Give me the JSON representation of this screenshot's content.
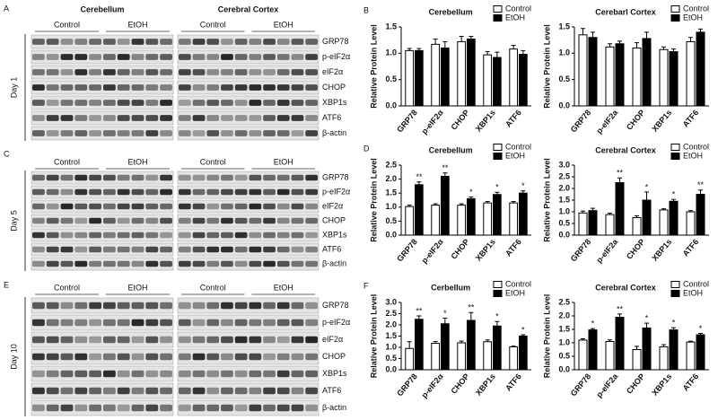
{
  "blots": [
    {
      "letter": "A",
      "regions": [
        "Cerebellum",
        "Cerebral Cortex"
      ],
      "groups": [
        "Control",
        "EtOH",
        "Control",
        "EtOH"
      ],
      "day": "Day 1",
      "proteins": [
        "GRP78",
        "p-eIF2α",
        "eIF2α",
        "CHOP",
        "XBP1s",
        "ATF6",
        "β-actin"
      ]
    },
    {
      "letter": "C",
      "groups": [
        "Control",
        "EtOH",
        "Control",
        "EtOH"
      ],
      "day": "Day 5",
      "proteins": [
        "GRP78",
        "p-eIF2α",
        "eIF2α",
        "CHOP",
        "XBP1s",
        "ATF6",
        "β-actin"
      ]
    },
    {
      "letter": "E",
      "groups": [
        "Control",
        "EtOH",
        "Control",
        "EtOH"
      ],
      "day": "Day 10",
      "proteins": [
        "GRP78",
        "p-eIF2α",
        "eIF2α",
        "CHOP",
        "XBP1s",
        "ATF6",
        "β-actin"
      ]
    }
  ],
  "chart_data": [
    {
      "type": "bar",
      "panel_label": "B",
      "title": "Cerebellum",
      "y_label": "Relative Protein Level",
      "categories": [
        "GRP78",
        "p-eIF2α",
        "CHOP",
        "XBP1s",
        "ATF6"
      ],
      "series": [
        {
          "name": "Control",
          "color": "#ffffff",
          "values": [
            1.05,
            1.17,
            1.22,
            0.97,
            1.08
          ],
          "errors": [
            0.04,
            0.1,
            0.1,
            0.06,
            0.07
          ],
          "significance": [
            null,
            null,
            null,
            null,
            null
          ]
        },
        {
          "name": "EtOH",
          "color": "#000000",
          "values": [
            1.05,
            1.1,
            1.27,
            0.92,
            0.98
          ],
          "errors": [
            0.04,
            0.12,
            0.05,
            0.1,
            0.07
          ],
          "significance": [
            null,
            null,
            null,
            null,
            null
          ]
        }
      ],
      "ylim": [
        0,
        1.5
      ],
      "yticks": [
        {
          "value": 0,
          "label": "0.0"
        },
        {
          "value": 0.5,
          "label": "0.5"
        },
        {
          "value": 1,
          "label": "1.0"
        },
        {
          "value": 1.5,
          "label": "1.5"
        }
      ]
    },
    {
      "type": "bar",
      "title": "Cerebarl Cortex",
      "y_label": "Relative Protein Level",
      "categories": [
        "GRP78",
        "p-eIF2a",
        "CHOP",
        "XBP1s",
        "ATF6"
      ],
      "series": [
        {
          "name": "Control",
          "color": "#ffffff",
          "values": [
            1.35,
            1.12,
            1.1,
            1.07,
            1.22
          ],
          "errors": [
            0.12,
            0.06,
            0.1,
            0.05,
            0.08
          ],
          "significance": [
            null,
            null,
            null,
            null,
            null
          ]
        },
        {
          "name": "EtOH",
          "color": "#000000",
          "values": [
            1.3,
            1.18,
            1.28,
            1.03,
            1.4
          ],
          "errors": [
            0.1,
            0.05,
            0.12,
            0.05,
            0.06
          ],
          "significance": [
            null,
            null,
            null,
            null,
            null
          ]
        }
      ],
      "ylim": [
        0,
        1.5
      ],
      "yticks": [
        {
          "value": 0,
          "label": "0.0"
        },
        {
          "value": 0.5,
          "label": "0.5"
        },
        {
          "value": 1,
          "label": "1.0"
        },
        {
          "value": 1.5,
          "label": "1.5"
        }
      ]
    },
    {
      "type": "bar",
      "panel_label": "D",
      "title": "Cerebellum",
      "y_label": "Relative Protein Level",
      "categories": [
        "GRP78",
        "p-eIF2α",
        "CHOP",
        "XBP1s",
        "ATF6"
      ],
      "series": [
        {
          "name": "Control",
          "color": "#ffffff",
          "values": [
            1.02,
            1.07,
            1.07,
            1.15,
            1.15
          ],
          "errors": [
            0.05,
            0.05,
            0.05,
            0.05,
            0.05
          ],
          "significance": [
            null,
            null,
            null,
            null,
            null
          ]
        },
        {
          "name": "EtOH",
          "color": "#000000",
          "values": [
            1.8,
            2.1,
            1.3,
            1.45,
            1.5
          ],
          "errors": [
            0.1,
            0.12,
            0.06,
            0.08,
            0.08
          ],
          "significance": [
            "**",
            "**",
            "*",
            "*",
            "*"
          ]
        }
      ],
      "ylim": [
        0,
        2.5
      ],
      "yticks": [
        {
          "value": 0,
          "label": "0.0"
        },
        {
          "value": 0.5,
          "label": "0.5"
        },
        {
          "value": 1,
          "label": "1.0"
        },
        {
          "value": 1.5,
          "label": "1.5"
        },
        {
          "value": 2,
          "label": "2.0"
        },
        {
          "value": 2.5,
          "label": "2.5"
        }
      ]
    },
    {
      "type": "bar",
      "title": "Cerebral Cortex",
      "y_label": "Relative Protein Level",
      "categories": [
        "GRP78",
        "p-eIF2a",
        "CHOP",
        "XBP1s",
        "ATF6"
      ],
      "series": [
        {
          "name": "Control",
          "color": "#ffffff",
          "values": [
            0.95,
            0.88,
            0.75,
            1.08,
            1.0
          ],
          "errors": [
            0.08,
            0.06,
            0.08,
            0.05,
            0.05
          ],
          "significance": [
            null,
            null,
            null,
            null,
            null
          ]
        },
        {
          "name": "EtOH",
          "color": "#000000",
          "values": [
            1.05,
            2.25,
            1.5,
            1.45,
            1.75
          ],
          "errors": [
            0.1,
            0.2,
            0.35,
            0.08,
            0.18
          ],
          "significance": [
            null,
            "**",
            "*",
            "*",
            "**"
          ]
        }
      ],
      "ylim": [
        0,
        3
      ],
      "yticks": [
        {
          "value": 0,
          "label": "0.0"
        },
        {
          "value": 0.5,
          "label": "0.5"
        },
        {
          "value": 1,
          "label": "1.0"
        },
        {
          "value": 1.5,
          "label": "1.5"
        },
        {
          "value": 2,
          "label": "2.0"
        },
        {
          "value": 2.5,
          "label": "2.5"
        },
        {
          "value": 3,
          "label": "3.0"
        }
      ]
    },
    {
      "type": "bar",
      "panel_label": "F",
      "title": "Cerbellum",
      "y_label": "Relative Protein Level",
      "categories": [
        "GRP78",
        "p-eIF2α",
        "CHOP",
        "XBP1s",
        "ATF6"
      ],
      "series": [
        {
          "name": "Control",
          "color": "#ffffff",
          "values": [
            0.95,
            1.18,
            1.2,
            1.25,
            1.02
          ],
          "errors": [
            0.3,
            0.08,
            0.08,
            0.08,
            0.03
          ],
          "significance": [
            null,
            null,
            null,
            null,
            null
          ]
        },
        {
          "name": "EtOH",
          "color": "#000000",
          "values": [
            2.25,
            2.05,
            2.2,
            1.95,
            1.5
          ],
          "errors": [
            0.15,
            0.25,
            0.35,
            0.2,
            0.06
          ],
          "significance": [
            "**",
            "*",
            "**",
            "*",
            "*"
          ]
        }
      ],
      "ylim": [
        0,
        3
      ],
      "yticks": [
        {
          "value": 0,
          "label": "0.0"
        },
        {
          "value": 0.5,
          "label": "0.5"
        },
        {
          "value": 1,
          "label": "1.0"
        },
        {
          "value": 1.5,
          "label": "1.5"
        },
        {
          "value": 2,
          "label": "2.0"
        },
        {
          "value": 2.5,
          "label": "2.5"
        },
        {
          "value": 3,
          "label": "3.0"
        }
      ]
    },
    {
      "type": "bar",
      "title": "Cerebral Cortex",
      "y_label": "Relative Protein Level",
      "categories": [
        "GRP78",
        "p-eIF2a",
        "CHOP",
        "XBP1s",
        "ATF6"
      ],
      "series": [
        {
          "name": "Control",
          "color": "#ffffff",
          "values": [
            1.1,
            1.05,
            0.75,
            0.85,
            1.03
          ],
          "errors": [
            0.05,
            0.06,
            0.12,
            0.08,
            0.03
          ],
          "significance": [
            null,
            null,
            null,
            null,
            null
          ]
        },
        {
          "name": "EtOH",
          "color": "#000000",
          "values": [
            1.48,
            1.95,
            1.55,
            1.48,
            1.3
          ],
          "errors": [
            0.05,
            0.12,
            0.18,
            0.08,
            0.05
          ],
          "significance": [
            "*",
            "**",
            "*",
            "*",
            "*"
          ]
        }
      ],
      "ylim": [
        0,
        2.5
      ],
      "yticks": [
        {
          "value": 0,
          "label": "0.0"
        },
        {
          "value": 0.5,
          "label": "0.5"
        },
        {
          "value": 1,
          "label": "1.0"
        },
        {
          "value": 1.5,
          "label": "1.5"
        },
        {
          "value": 2,
          "label": "2.0"
        },
        {
          "value": 2.5,
          "label": "2.5"
        }
      ]
    }
  ]
}
